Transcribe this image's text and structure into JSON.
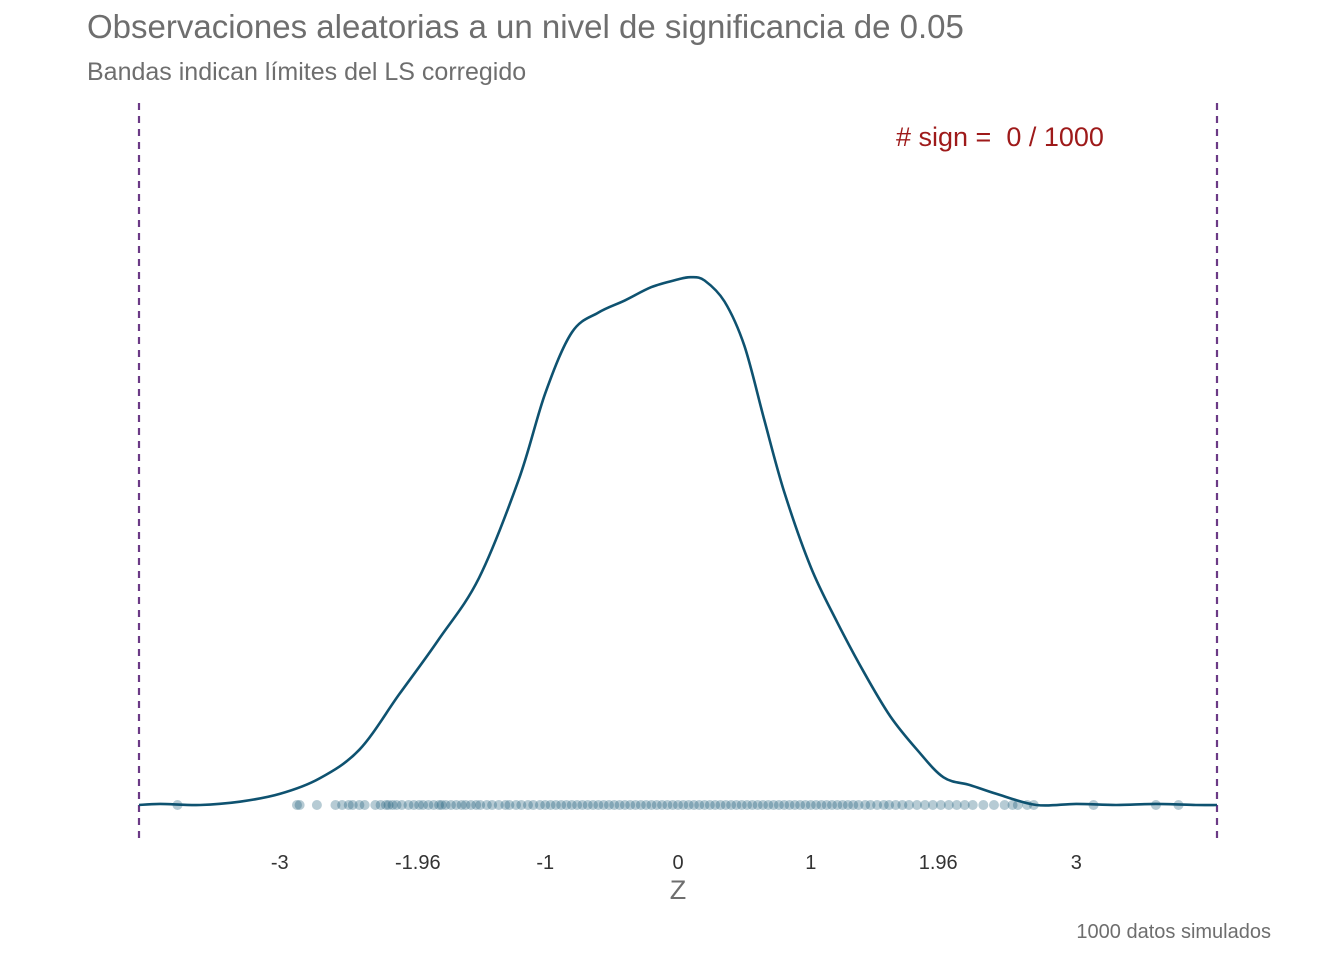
{
  "chart_data": {
    "type": "density",
    "title": "Observaciones aleatorias a un nivel de significancia de 0.05",
    "subtitle": "Bandas indican límites del LS corregido",
    "caption": "1000  datos simulados",
    "annotation": "# sign =  0 / 1000",
    "xlabel": "Z",
    "ylabel": "",
    "xlim": [
      -4.06,
      4.06
    ],
    "x_ticks": [
      -3,
      -1.96,
      -1,
      0,
      1,
      1.96,
      3
    ],
    "x_tick_labels": [
      "-3",
      "-1.96",
      "-1",
      "0",
      "1",
      "1.96",
      "3"
    ],
    "ylim": [
      0,
      0.46
    ],
    "grid": false,
    "bands": [
      -4.06,
      4.06
    ],
    "density": {
      "x": [
        -4.06,
        -3.9,
        -3.6,
        -3.3,
        -3.0,
        -2.7,
        -2.4,
        -2.1,
        -1.8,
        -1.5,
        -1.2,
        -1.0,
        -0.8,
        -0.6,
        -0.4,
        -0.2,
        0.0,
        0.1,
        0.2,
        0.35,
        0.5,
        0.65,
        0.8,
        1.0,
        1.2,
        1.4,
        1.6,
        1.8,
        2.0,
        2.2,
        2.4,
        2.7,
        3.0,
        3.3,
        3.6,
        3.9,
        4.06
      ],
      "y": [
        0.0,
        0.001,
        0.0,
        0.003,
        0.01,
        0.024,
        0.05,
        0.1,
        0.15,
        0.205,
        0.294,
        0.372,
        0.427,
        0.445,
        0.456,
        0.468,
        0.475,
        0.477,
        0.474,
        0.455,
        0.415,
        0.348,
        0.283,
        0.215,
        0.165,
        0.12,
        0.08,
        0.05,
        0.025,
        0.018,
        0.01,
        0.0,
        0.001,
        0.0,
        0.001,
        0.0,
        0.0
      ]
    },
    "observations": [
      -3.77,
      -2.87,
      -2.85,
      -2.72,
      -2.58,
      -2.53,
      -2.48,
      -2.45,
      -2.4,
      -2.36,
      -2.28,
      -2.24,
      -2.2,
      -2.18,
      -2.15,
      -2.12,
      -2.08,
      -2.03,
      -1.99,
      -1.95,
      -1.92,
      -1.88,
      -1.84,
      -1.8,
      -1.78,
      -1.75,
      -1.71,
      -1.67,
      -1.63,
      -1.6,
      -1.56,
      -1.52,
      -1.49,
      -1.44,
      -1.4,
      -1.35,
      -1.3,
      -1.27,
      -1.22,
      -1.18,
      -1.13,
      -1.09,
      -1.04,
      -1.0,
      -0.96,
      -0.92,
      -0.88,
      -0.84,
      -0.8,
      -0.76,
      -0.72,
      -0.68,
      -0.64,
      -0.6,
      -0.56,
      -0.52,
      -0.48,
      -0.44,
      -0.4,
      -0.36,
      -0.32,
      -0.28,
      -0.24,
      -0.2,
      -0.16,
      -0.12,
      -0.08,
      -0.04,
      0.0,
      0.04,
      0.08,
      0.12,
      0.16,
      0.2,
      0.24,
      0.28,
      0.32,
      0.36,
      0.4,
      0.44,
      0.48,
      0.52,
      0.56,
      0.6,
      0.64,
      0.68,
      0.72,
      0.76,
      0.8,
      0.84,
      0.88,
      0.92,
      0.96,
      1.0,
      1.04,
      1.08,
      1.12,
      1.16,
      1.2,
      1.24,
      1.28,
      1.32,
      1.36,
      1.41,
      1.45,
      1.5,
      1.55,
      1.59,
      1.64,
      1.69,
      1.74,
      1.8,
      1.86,
      1.92,
      1.98,
      2.04,
      2.1,
      2.16,
      2.22,
      2.3,
      2.38,
      2.46,
      2.52,
      2.56,
      2.63,
      2.68,
      3.13,
      3.6,
      3.77
    ],
    "colors": {
      "curve": "#0e5270",
      "points": "#0e5270",
      "bands": "#6b3a86",
      "annotation": "#9e1a1a"
    }
  }
}
